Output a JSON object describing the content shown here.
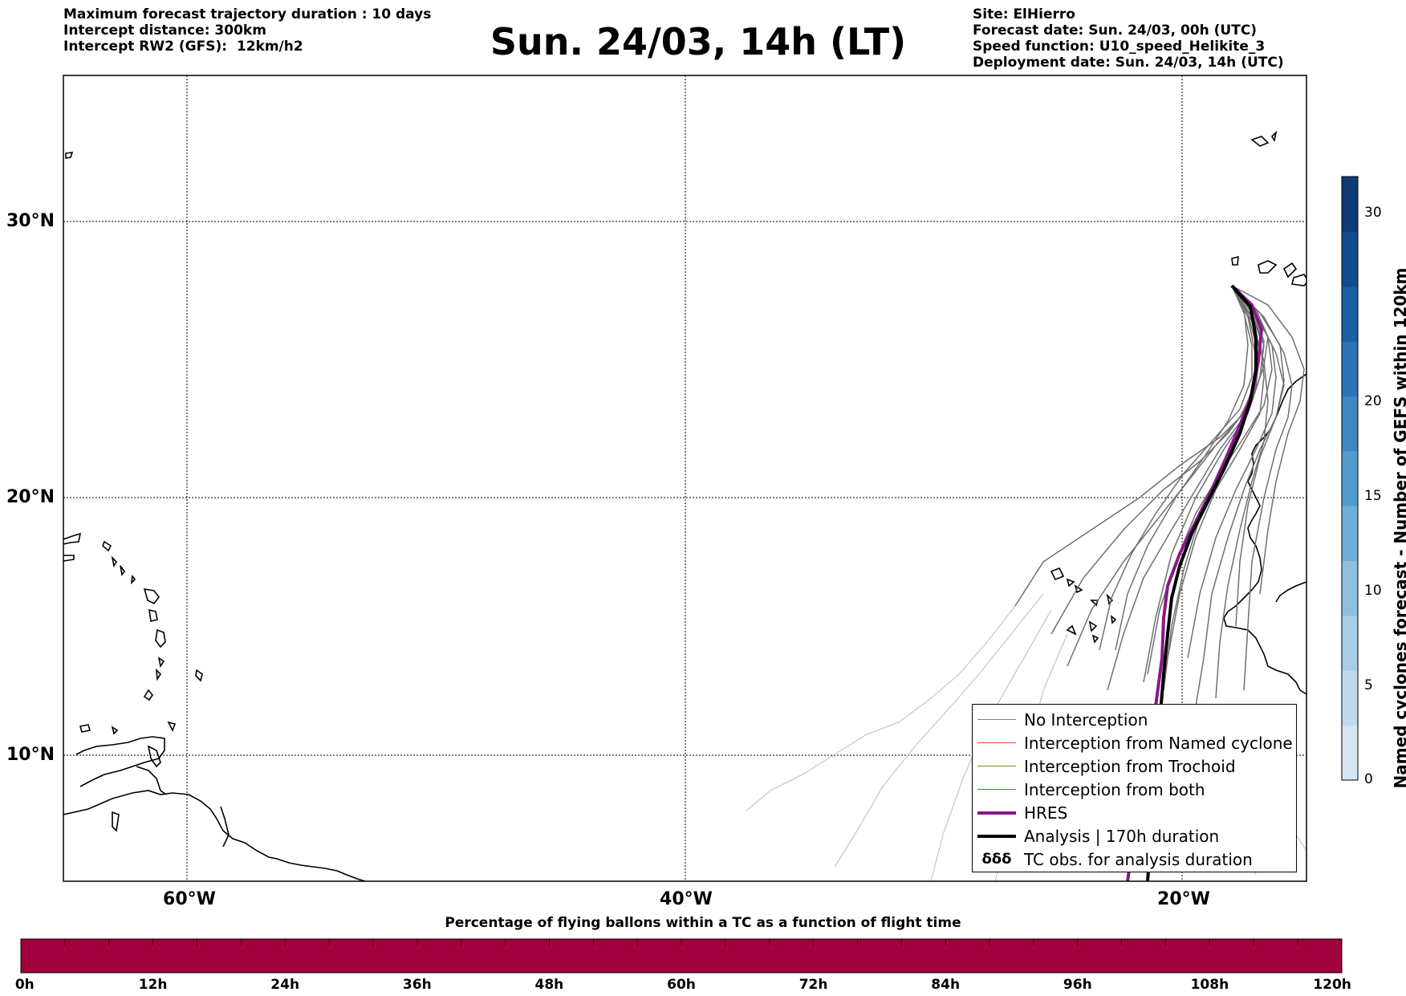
{
  "header_left": [
    "Maximum forecast trajectory duration : 10 days",
    "Intercept distance: 300km",
    "Intercept RW2 (GFS):  12km/h2"
  ],
  "header_right": [
    "Site: ElHierro",
    "Forecast date: Sun. 24/03, 00h (UTC)",
    "Speed function: U10_speed_Helikite_3",
    "Deployment date: Sun. 24/03, 14h (UTC)"
  ],
  "title": "Sun. 24/03, 14h (LT)",
  "map": {
    "lat_labels": [
      "30°N",
      "20°N",
      "10°N"
    ],
    "lon_labels": [
      "60°W",
      "40°W",
      "20°W"
    ]
  },
  "legend": {
    "items": [
      {
        "label": "No Interception",
        "color": "#808080",
        "width": 1.5
      },
      {
        "label": "Interception from Named cyclone",
        "color": "#e8541c",
        "width": 1.5
      },
      {
        "label": "Interception from Trochoid",
        "color": "#8b8b1a",
        "width": 1.5
      },
      {
        "label": "Interception from both",
        "color": "#2e8b2e",
        "width": 1.5
      },
      {
        "label": "HRES",
        "color": "#8b168b",
        "width": 4
      },
      {
        "label": "Analysis | 170h duration",
        "color": "#000000",
        "width": 4
      },
      {
        "label": "TC obs. for analysis duration",
        "color": "#000000",
        "width": 0,
        "symbol": "δδδ"
      }
    ]
  },
  "colorbar_right": {
    "title": "Named cyclones forecast - Number of GEFS within 120km",
    "ticks": [
      "0",
      "5",
      "10",
      "15",
      "20",
      "30"
    ],
    "colors": [
      "#d6e5f4",
      "#c3d9ee",
      "#aacde7",
      "#8fbfe0",
      "#6faed8",
      "#529bcd",
      "#3d88c2",
      "#2a73b4",
      "#1b5fa4",
      "#124c8e",
      "#0d3b73"
    ]
  },
  "colorbar_bottom": {
    "title": "Percentage of flying ballons within a TC as a function of flight time",
    "labels": [
      "0h",
      "12h",
      "24h",
      "36h",
      "48h",
      "60h",
      "72h",
      "84h",
      "96h",
      "108h",
      "120h"
    ],
    "color": "#a0003c"
  }
}
